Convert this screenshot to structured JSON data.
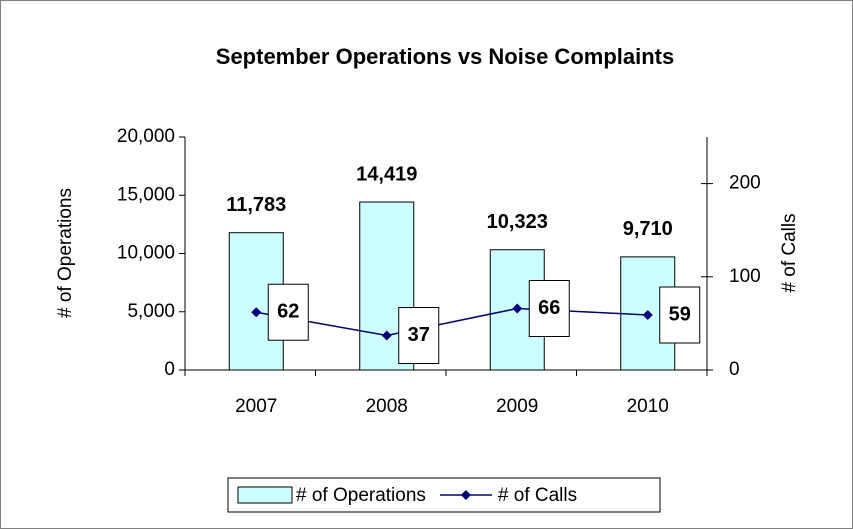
{
  "chart_data": {
    "type": "bar",
    "title": "September Operations vs Noise Complaints",
    "categories": [
      "2007",
      "2008",
      "2009",
      "2010"
    ],
    "series": [
      {
        "name": "# of Operations",
        "type": "bar",
        "color": "#ccffff",
        "values": [
          11783,
          14419,
          10323,
          9710
        ],
        "value_labels": [
          "11,783",
          "14,419",
          "10,323",
          "9,710"
        ]
      },
      {
        "name": "# of Calls",
        "type": "line",
        "axis": "y2",
        "color": "#000080",
        "values": [
          62,
          37,
          66,
          59
        ]
      }
    ],
    "ylabel": "# of Operations",
    "y2label": "# of Calls",
    "ylim": [
      0,
      20000
    ],
    "yticks": [
      0,
      {
        "value": 5000,
        "label": "5,000"
      },
      {
        "value": 10000,
        "label": "10,000"
      },
      {
        "value": 15000,
        "label": "15,000"
      },
      {
        "value": 20000,
        "label": "20,000"
      }
    ],
    "y2lim": [
      0,
      250
    ],
    "y2ticks": [
      0,
      100,
      200
    ],
    "grid": false,
    "legend": "bottom"
  }
}
